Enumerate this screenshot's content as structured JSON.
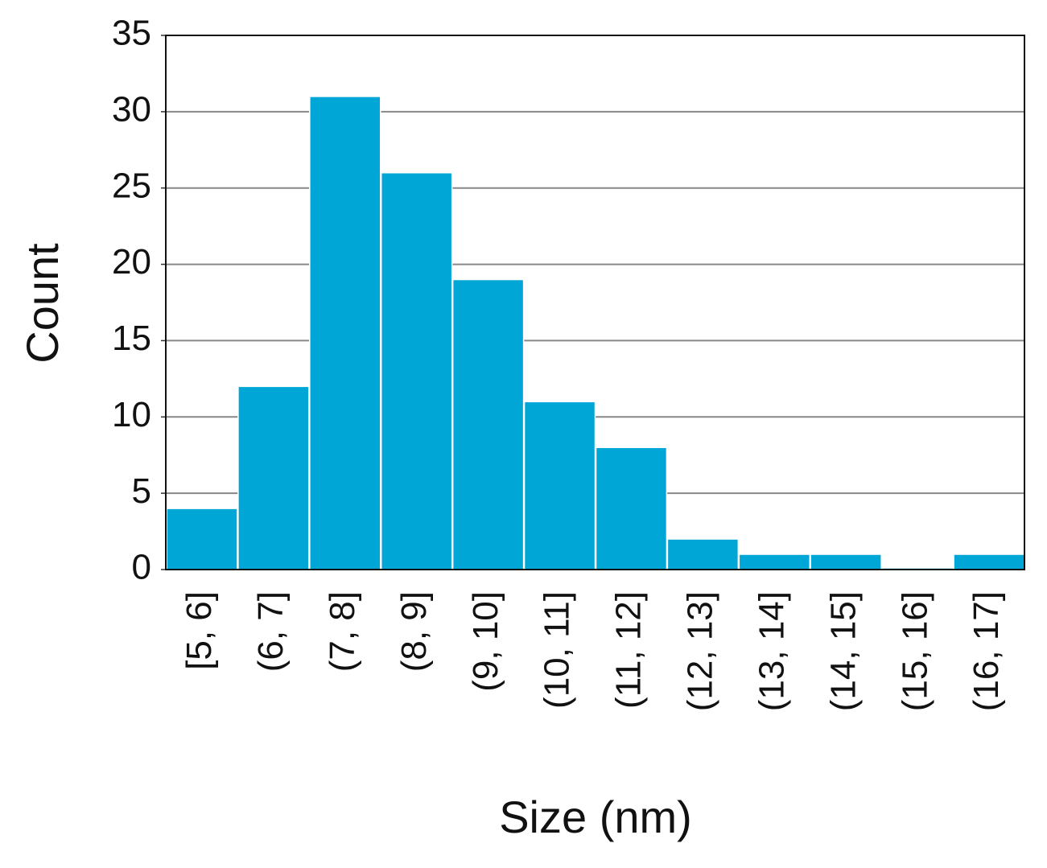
{
  "chart_data": {
    "type": "bar",
    "x_label": "Size (nm)",
    "y_label": "Count",
    "categories": [
      "[5, 6]",
      "(6, 7]",
      "(7, 8]",
      "(8, 9]",
      "(9, 10]",
      "(10, 11]",
      "(11, 12]",
      "(12, 13]",
      "(13, 14]",
      "(14, 15]",
      "(15, 16]",
      "(16, 17]"
    ],
    "values": [
      4,
      12,
      31,
      26,
      19,
      11,
      8,
      2,
      1,
      1,
      0,
      1
    ],
    "color": "#00a6d6",
    "ylim": [
      0,
      35
    ],
    "yticks": [
      0,
      5,
      10,
      15,
      20,
      25,
      30,
      35
    ],
    "grid": true
  }
}
